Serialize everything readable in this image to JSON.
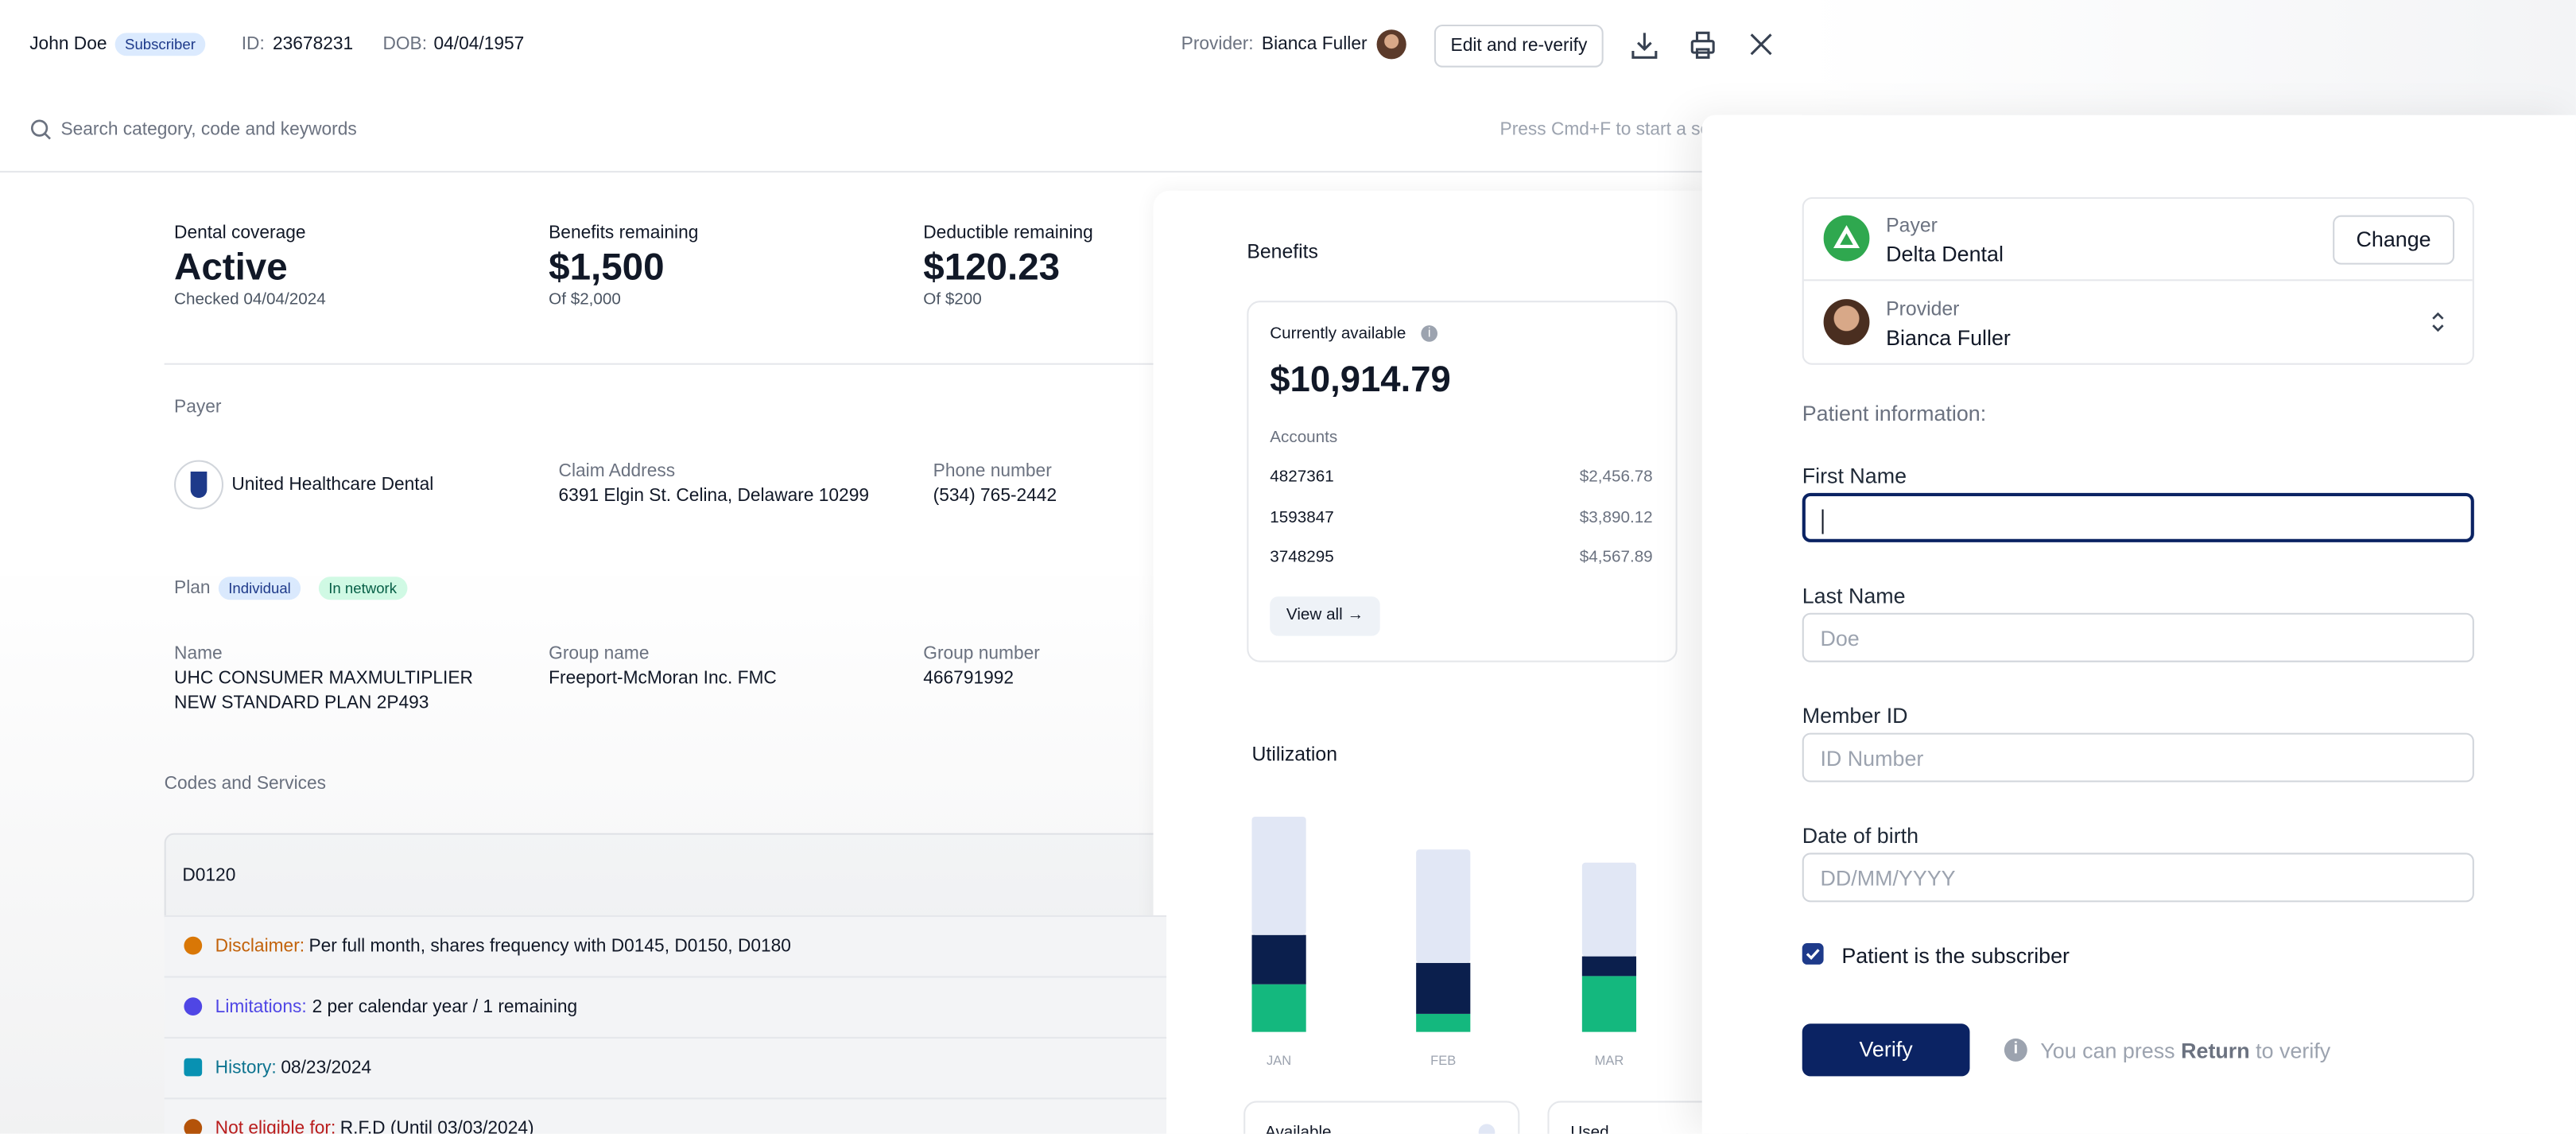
{
  "header": {
    "name": "John Doe",
    "badge": "Subscriber",
    "id_label": "ID:",
    "id": "23678231",
    "dob_label": "DOB:",
    "dob": "04/04/1957",
    "provider_label": "Provider:",
    "provider": "Bianca Fuller",
    "edit_button": "Edit and re-verify"
  },
  "search": {
    "placeholder": "Search category, code and keywords",
    "hint": "Press Cmd+F to start a se"
  },
  "summary": [
    {
      "label": "Dental coverage",
      "value": "Active",
      "sub": "Checked 04/04/2024"
    },
    {
      "label": "Benefits remaining",
      "value": "$1,500",
      "sub": "Of $2,000"
    },
    {
      "label": "Deductible remaining",
      "value": "$120.23",
      "sub": "Of $200"
    }
  ],
  "payer": {
    "heading": "Payer",
    "name": "United Healthcare Dental",
    "address_label": "Claim Address",
    "address": "6391 Elgin St. Celina, Delaware 10299",
    "phone_label": "Phone number",
    "phone": "(534) 765-2442"
  },
  "plan": {
    "heading": "Plan",
    "badges": [
      "Individual",
      "In network"
    ],
    "name_label": "Name",
    "name": "UHC CONSUMER MAXMULTIPLIER NEW STANDARD PLAN 2P493",
    "group_name_label": "Group name",
    "group_name": "Freeport-McMoran Inc. FMC",
    "group_number_label": "Group number",
    "group_number": "466791992"
  },
  "codes": {
    "heading": "Codes and Services",
    "code": "D0120",
    "rows": [
      {
        "label": "Disclaimer:",
        "text": "Per full month, shares frequency with D0145, D0150, D0180"
      },
      {
        "label": "Limitations:",
        "text": "2 per calendar year / 1 remaining"
      },
      {
        "label": "History:",
        "text": "08/23/2024"
      },
      {
        "label": "Not eligible for:",
        "text": "R.F.D (Until 03/03/2024)"
      }
    ]
  },
  "benefits": {
    "heading": "Benefits",
    "available_label": "Currently available",
    "available": "$10,914.79",
    "accounts_label": "Accounts",
    "accounts": [
      {
        "id": "4827361",
        "amount": "$2,456.78"
      },
      {
        "id": "1593847",
        "amount": "$3,890.12"
      },
      {
        "id": "3748295",
        "amount": "$4,567.89"
      }
    ],
    "view_all": "View all →"
  },
  "utilization": {
    "heading": "Utilization",
    "categories": [
      "JAN",
      "FEB",
      "MAR"
    ],
    "series": [
      {
        "color": "#14b87e",
        "values": [
          29,
          11,
          34
        ]
      },
      {
        "color": "#0b1f4d",
        "values": [
          30,
          31,
          12
        ]
      },
      {
        "color": "#e1e7f5",
        "values": [
          72,
          69,
          57
        ]
      }
    ],
    "cards": [
      "Available",
      "Used"
    ]
  },
  "form": {
    "payer_label": "Payer",
    "payer": "Delta Dental",
    "change": "Change",
    "provider_label": "Provider",
    "provider": "Bianca Fuller",
    "section": "Patient information:",
    "fields": [
      {
        "label": "First Name",
        "placeholder": ""
      },
      {
        "label": "Last Name",
        "placeholder": "Doe"
      },
      {
        "label": "Member ID",
        "placeholder": "ID Number"
      },
      {
        "label": "Date of birth",
        "placeholder": "DD/MM/YYYY"
      }
    ],
    "checkbox": "Patient is the subscriber",
    "verify": "Verify",
    "hint_pre": "You can press",
    "hint_key": "Return",
    "hint_post": "to verify"
  }
}
